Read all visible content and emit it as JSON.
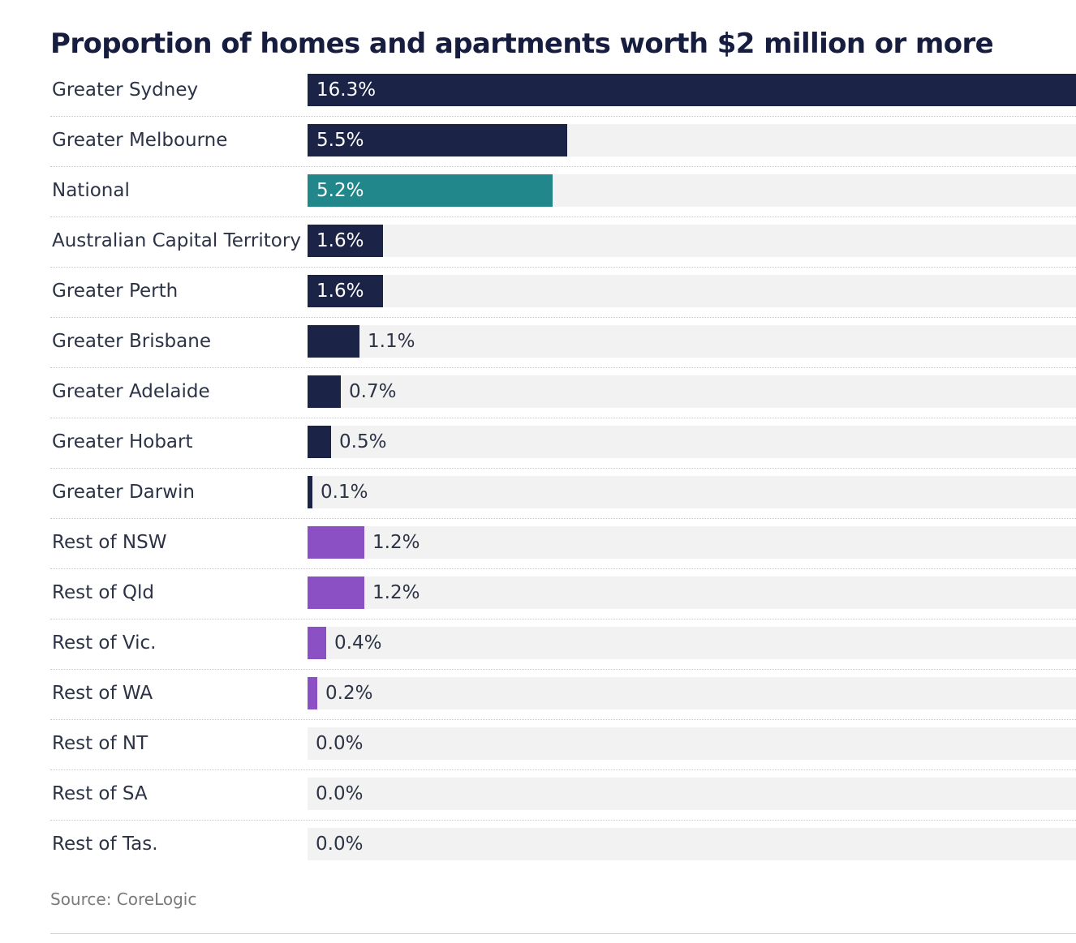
{
  "title": "Proportion of homes and apartments worth $2 million or more",
  "source": "Source: CoreLogic",
  "colors": {
    "capital": "#1b2346",
    "national": "#22878a",
    "regional": "#8b50c4",
    "track": "#f2f2f2"
  },
  "chart_data": {
    "type": "bar",
    "orientation": "horizontal",
    "title": "Proportion of homes and apartments worth $2 million or more",
    "xlim": [
      0,
      16.3
    ],
    "categories": [
      "Greater Sydney",
      "Greater Melbourne",
      "National",
      "Australian Capital Territory",
      "Greater Perth",
      "Greater Brisbane",
      "Greater Adelaide",
      "Greater Hobart",
      "Greater Darwin",
      "Rest of NSW",
      "Rest of Qld",
      "Rest of Vic.",
      "Rest of WA",
      "Rest of NT",
      "Rest of SA",
      "Rest of Tas."
    ],
    "values": [
      16.3,
      5.5,
      5.2,
      1.6,
      1.6,
      1.1,
      0.7,
      0.5,
      0.1,
      1.2,
      1.2,
      0.4,
      0.2,
      0.0,
      0.0,
      0.0
    ],
    "labels": [
      "16.3%",
      "5.5%",
      "5.2%",
      "1.6%",
      "1.6%",
      "1.1%",
      "0.7%",
      "0.5%",
      "0.1%",
      "1.2%",
      "1.2%",
      "0.4%",
      "0.2%",
      "0.0%",
      "0.0%",
      "0.0%"
    ],
    "groups": [
      "capital",
      "capital",
      "national",
      "capital",
      "capital",
      "capital",
      "capital",
      "capital",
      "capital",
      "regional",
      "regional",
      "regional",
      "regional",
      "regional",
      "regional",
      "regional"
    ],
    "grid": false,
    "legend": "none"
  }
}
